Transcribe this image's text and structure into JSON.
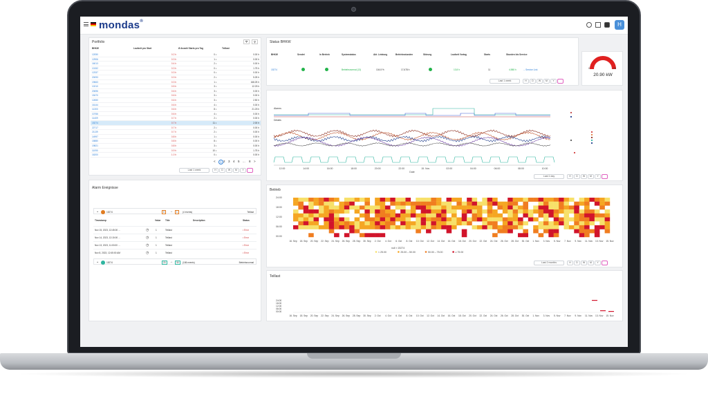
{
  "app": {
    "logo": "mondas",
    "avatar": "H"
  },
  "colors": {
    "accent": "#2f7fd6",
    "error": "#d23b3b",
    "ok": "#22b34a",
    "gauge": "#e02020",
    "heat_low": "#f7e06a",
    "heat_mid": "#f5a623",
    "heat_high": "#f07d20",
    "heat_top": "#d1142b"
  },
  "portfolio": {
    "title": "Portfolio",
    "columns": [
      "BHKW",
      "Laufzeit pro Start",
      "Ø Anzahl Starts pro Tag",
      "Teillast"
    ],
    "rows": [
      [
        "12050",
        "0.2 h",
        "0 ▪",
        "0.00 h"
      ],
      [
        "12906",
        "0.3 h",
        "1 ▪",
        "0.00 h"
      ],
      [
        "16013",
        "0.4 h",
        "2 ▪",
        "0.00 h"
      ],
      [
        "10152",
        "0.3 h",
        "0 ▪",
        "1.75 h"
      ],
      [
        "12337",
        "0.3 h",
        "0 ▪",
        "0.00 h"
      ],
      [
        "20093",
        "0.3 h",
        "2 ▪",
        "5.25 h"
      ],
      [
        "19663",
        "0.3 h",
        "1 ▪",
        "168.25 h"
      ],
      [
        "10210",
        "0.5 h",
        "3 ▪",
        "12.25 h"
      ],
      [
        "20696",
        "0.6 h",
        "3 ▪",
        "0.00 h"
      ],
      [
        "15470",
        "0.6 h",
        "3 ▪",
        "0.00 h"
      ],
      [
        "12650",
        "0.6 h",
        "3 ▪",
        "2.50 h"
      ],
      [
        "16144",
        "0.6 h",
        "4 ▪",
        "0.00 h"
      ],
      [
        "11300",
        "0.6 h",
        "8 ▪",
        "21.25 h"
      ],
      [
        "10766",
        "0.6 h",
        "4 ▪",
        "0.00 h"
      ],
      [
        "11409",
        "0.7 h",
        "2 ▪",
        "0.00 h"
      ],
      [
        "15274",
        "0.7 h",
        "11 ▪",
        "2.00 h"
      ],
      [
        "22717",
        "0.7 h",
        "2 ▪",
        "0.00 h"
      ],
      [
        "21139",
        "0.7 h",
        "2 ▪",
        "0.00 h"
      ],
      [
        "14997",
        "0.8 h",
        "1 ▪",
        "0.00 h"
      ],
      [
        "15880",
        "0.8 h",
        "8 ▪",
        "0.00 h"
      ],
      [
        "19821",
        "0.8 h",
        "3 ▪",
        "0.00 h"
      ],
      [
        "11090",
        "0.9 h",
        "10 ▪",
        "1.75 h"
      ],
      [
        "16200",
        "1.0 h",
        "0 ▪",
        "0.00 h"
      ]
    ],
    "pagination": [
      "<",
      "1",
      "2",
      "3",
      "4",
      "5",
      "...",
      "8",
      ">"
    ],
    "range": "Last 1 week"
  },
  "time_buttons": [
    "H",
    "D",
    "W",
    "M",
    "Y"
  ],
  "status": {
    "title": "Status BHKW",
    "columns": [
      "BHKW",
      "Sendet",
      "In Betrieb",
      "Systemstatus",
      "Akt. Leistung",
      "Betriebsstunden",
      "Störung",
      "Laufzeit Vortag",
      "Starts",
      "Stunden bis Service"
    ],
    "row": {
      "bhkw": "15274",
      "systemstatus": "Betriebsnormal (13)",
      "leistung": "104.8 %",
      "stunden": "17,678 h",
      "laufzeit": "13.8 h",
      "starts": "11",
      "service": "4,988 h",
      "service_link": "→ Service Link"
    },
    "range": "Last 1 week",
    "gauge": {
      "min": "0",
      "max": "20",
      "value": "20.90 kW",
      "fill": 1.0
    }
  },
  "trend": {
    "label_top": "Alarms",
    "label_mid": "Details",
    "xticks": [
      "12:00",
      "14:00",
      "16:00",
      "18:00",
      "20:00",
      "22:00",
      "15. Nov",
      "02:00",
      "04:00",
      "06:00",
      "08:00",
      "10:00"
    ],
    "xlabel": "Date",
    "range": "Last 1 day"
  },
  "alarms": {
    "title": "Alarm Ereignisse",
    "group1": {
      "id": "15274",
      "from": "0",
      "to": "1",
      "count": "(4 events)",
      "title": "Teillast"
    },
    "columns": [
      "Timestamp",
      "Value",
      "Title",
      "Description",
      "Status"
    ],
    "rows": [
      [
        "Nov 15, 2023, 12:45:00 …",
        "1",
        "Teillast",
        "",
        "Error"
      ],
      [
        "Nov 14, 2023, 12:15:00 …",
        "1",
        "Teillast",
        "",
        "Error"
      ],
      [
        "Nov 13, 2023, 11:00:00 …",
        "1",
        "Teillast",
        "",
        "Error"
      ],
      [
        "Nov 8, 2023, 12:45:00 AM",
        "1",
        "Teillast",
        "",
        "Error"
      ]
    ],
    "group2": {
      "id": "15274",
      "from": "20",
      "to": "30",
      "count": "(186 events)",
      "title": "Betriebsnormal"
    }
  },
  "betrieb": {
    "title": "Betrieb",
    "yticks": [
      "24:00",
      "18:00",
      "12:00",
      "06:00",
      "00:00"
    ],
    "xticks": [
      "16. Sep",
      "18. Sep",
      "20. Sep",
      "22. Sep",
      "24. Sep",
      "26. Sep",
      "28. Sep",
      "30. Sep",
      "2. Oct",
      "4. Oct",
      "6. Oct",
      "8. Oct",
      "10. Oct",
      "12. Oct",
      "14. Oct",
      "16. Oct",
      "18. Oct",
      "20. Oct",
      "22. Oct",
      "24. Oct",
      "26. Oct",
      "28. Oct",
      "30. Oct",
      "1. Nov",
      "3. Nov",
      "5. Nov",
      "7. Nov",
      "9. Nov",
      "11. Nov",
      "13. Nov",
      "15. Nov"
    ],
    "legend_title": "null ≡ 15274",
    "legend": [
      "< 25.00",
      "25.00 – 50.00",
      "50.00 – 75.00",
      "≥ 75.00"
    ],
    "range": "Last 2 months"
  },
  "teillast": {
    "title": "Teillast",
    "yticks": [
      "24:00",
      "18:00",
      "12:00",
      "06:00",
      "00:00"
    ]
  }
}
